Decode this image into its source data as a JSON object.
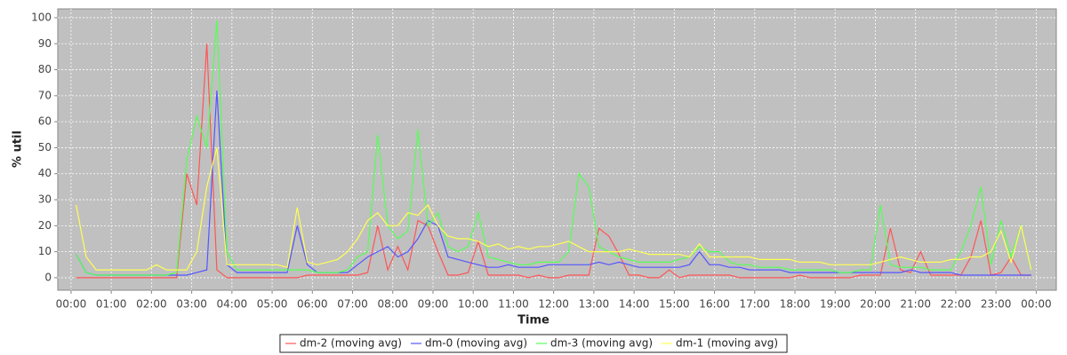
{
  "chart_data": {
    "type": "line",
    "x_label": "Time",
    "y_label": "% util",
    "x": [
      0.125,
      0.375,
      0.625,
      0.875,
      1.125,
      1.375,
      1.625,
      1.875,
      2.125,
      2.375,
      2.625,
      2.875,
      3.125,
      3.375,
      3.625,
      3.875,
      4.125,
      4.375,
      4.625,
      4.875,
      5.125,
      5.375,
      5.625,
      5.875,
      6.125,
      6.375,
      6.625,
      6.875,
      7.125,
      7.375,
      7.625,
      7.875,
      8.125,
      8.375,
      8.625,
      8.875,
      9.125,
      9.375,
      9.625,
      9.875,
      10.125,
      10.375,
      10.625,
      10.875,
      11.125,
      11.375,
      11.625,
      11.875,
      12.125,
      12.375,
      12.625,
      12.875,
      13.125,
      13.375,
      13.625,
      13.875,
      14.125,
      14.375,
      14.625,
      14.875,
      15.125,
      15.375,
      15.625,
      15.875,
      16.125,
      16.375,
      16.625,
      16.875,
      17.125,
      17.375,
      17.625,
      17.875,
      18.125,
      18.375,
      18.625,
      18.875,
      19.125,
      19.375,
      19.625,
      19.875,
      20.125,
      20.375,
      20.625,
      20.875,
      21.125,
      21.375,
      21.625,
      21.875,
      22.125,
      22.375,
      22.625,
      22.875,
      23.125,
      23.375,
      23.625,
      23.875
    ],
    "series": [
      {
        "name": "dm-2 (moving avg)",
        "color": "#ff5555",
        "values": [
          0,
          0,
          0,
          0,
          0,
          0,
          0,
          0,
          0,
          0,
          0,
          40,
          28,
          90,
          3,
          0,
          0,
          0,
          0,
          0,
          0,
          0,
          0,
          1,
          1,
          1,
          1,
          1,
          1,
          2,
          20,
          3,
          12,
          3,
          22,
          20,
          10,
          1,
          1,
          2,
          14,
          1,
          1,
          1,
          1,
          0,
          1,
          0,
          0,
          1,
          1,
          1,
          19,
          16,
          9,
          1,
          1,
          0,
          0,
          3,
          0,
          1,
          1,
          1,
          1,
          1,
          0,
          0,
          0,
          0,
          0,
          0,
          1,
          0,
          0,
          0,
          0,
          0,
          1,
          1,
          1,
          19,
          3,
          2,
          10,
          1,
          1,
          1,
          1,
          8,
          22,
          1,
          2,
          8,
          1,
          1
        ]
      },
      {
        "name": "dm-0 (moving avg)",
        "color": "#5555ff",
        "values": [
          9,
          2,
          1,
          1,
          1,
          1,
          1,
          1,
          1,
          1,
          1,
          1,
          2,
          3,
          72,
          5,
          2,
          2,
          2,
          2,
          2,
          2,
          20,
          5,
          2,
          2,
          2,
          2,
          5,
          8,
          10,
          12,
          8,
          10,
          15,
          22,
          20,
          8,
          7,
          6,
          5,
          4,
          4,
          5,
          4,
          4,
          4,
          5,
          5,
          5,
          5,
          5,
          6,
          5,
          6,
          5,
          4,
          4,
          4,
          4,
          4,
          5,
          10,
          5,
          5,
          4,
          4,
          3,
          3,
          3,
          3,
          2,
          2,
          2,
          2,
          2,
          2,
          2,
          2,
          2,
          2,
          2,
          2,
          3,
          2,
          2,
          2,
          2,
          1,
          1,
          1,
          1,
          1,
          1,
          1,
          1
        ]
      },
      {
        "name": "dm-3 (moving avg)",
        "color": "#55ff55",
        "values": [
          9,
          2,
          1,
          1,
          1,
          1,
          1,
          1,
          1,
          1,
          2,
          45,
          62,
          50,
          99,
          10,
          3,
          3,
          3,
          3,
          3,
          3,
          3,
          3,
          2,
          2,
          2,
          3,
          8,
          10,
          55,
          20,
          15,
          18,
          57,
          20,
          25,
          12,
          10,
          12,
          25,
          8,
          7,
          6,
          5,
          5,
          6,
          6,
          6,
          10,
          40,
          35,
          12,
          10,
          8,
          7,
          6,
          6,
          6,
          6,
          7,
          8,
          12,
          10,
          10,
          6,
          5,
          5,
          4,
          4,
          4,
          3,
          3,
          3,
          3,
          3,
          2,
          2,
          3,
          3,
          28,
          5,
          4,
          4,
          4,
          3,
          3,
          3,
          10,
          20,
          35,
          5,
          22,
          8,
          20,
          3
        ]
      },
      {
        "name": "dm-1 (moving avg)",
        "color": "#ffff55",
        "values": [
          28,
          8,
          3,
          3,
          3,
          3,
          3,
          3,
          5,
          3,
          3,
          3,
          10,
          35,
          50,
          5,
          5,
          5,
          5,
          5,
          5,
          4,
          27,
          6,
          5,
          6,
          7,
          10,
          15,
          22,
          25,
          20,
          20,
          25,
          24,
          28,
          20,
          16,
          15,
          15,
          14,
          12,
          13,
          11,
          12,
          11,
          12,
          12,
          13,
          14,
          12,
          10,
          10,
          10,
          10,
          11,
          10,
          9,
          9,
          9,
          9,
          8,
          13,
          8,
          8,
          8,
          8,
          8,
          7,
          7,
          7,
          7,
          6,
          6,
          6,
          5,
          5,
          5,
          5,
          5,
          6,
          7,
          8,
          7,
          6,
          6,
          6,
          7,
          7,
          8,
          8,
          10,
          18,
          6,
          20,
          3
        ]
      }
    ],
    "xlim": [
      -0.33,
      24.5
    ],
    "ylim": [
      -4.8,
      103.4
    ],
    "xticks": [
      {
        "value": 0,
        "label": "00:00"
      },
      {
        "value": 1,
        "label": "01:00"
      },
      {
        "value": 2,
        "label": "02:00"
      },
      {
        "value": 3,
        "label": "03:00"
      },
      {
        "value": 4,
        "label": "04:00"
      },
      {
        "value": 5,
        "label": "05:00"
      },
      {
        "value": 6,
        "label": "06:00"
      },
      {
        "value": 7,
        "label": "07:00"
      },
      {
        "value": 8,
        "label": "08:00"
      },
      {
        "value": 9,
        "label": "09:00"
      },
      {
        "value": 10,
        "label": "10:00"
      },
      {
        "value": 11,
        "label": "11:00"
      },
      {
        "value": 12,
        "label": "12:00"
      },
      {
        "value": 13,
        "label": "13:00"
      },
      {
        "value": 14,
        "label": "14:00"
      },
      {
        "value": 15,
        "label": "15:00"
      },
      {
        "value": 16,
        "label": "16:00"
      },
      {
        "value": 17,
        "label": "17:00"
      },
      {
        "value": 18,
        "label": "18:00"
      },
      {
        "value": 19,
        "label": "19:00"
      },
      {
        "value": 20,
        "label": "20:00"
      },
      {
        "value": 21,
        "label": "21:00"
      },
      {
        "value": 22,
        "label": "22:00"
      },
      {
        "value": 23,
        "label": "23:00"
      },
      {
        "value": 24,
        "label": "00:00"
      }
    ],
    "yticks": [
      0,
      10,
      20,
      30,
      40,
      50,
      60,
      70,
      80,
      90,
      100
    ],
    "grid": true,
    "legend": "bottom"
  }
}
